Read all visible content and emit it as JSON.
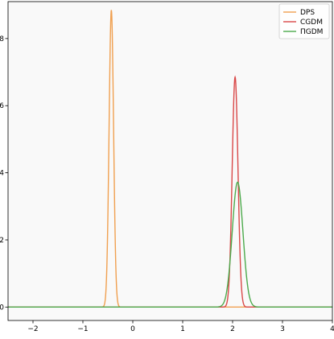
{
  "chart_data": {
    "type": "line",
    "title": "",
    "xlabel": "",
    "ylabel": "",
    "xlim": [
      -2.5,
      4.0
    ],
    "ylim": [
      -0.4,
      9.1
    ],
    "xticks": [
      -2,
      -1,
      0,
      1,
      2,
      3,
      4
    ],
    "xtick_labels": [
      "−2",
      "−1",
      "0",
      "1",
      "2",
      "3",
      "4"
    ],
    "yticks": [
      0,
      2,
      4,
      6,
      8
    ],
    "ytick_labels": [
      "0",
      "2",
      "4",
      "6",
      "8"
    ],
    "grid": false,
    "background": "#f9f9f9",
    "legend_position": "top-right",
    "series": [
      {
        "name": "DPS",
        "color": "#f0a050",
        "shape": "gaussian",
        "mu": -0.43,
        "sigma": 0.045,
        "peak": 8.85
      },
      {
        "name": "CGDM",
        "color": "#d94848",
        "shape": "gaussian",
        "mu": 2.05,
        "sigma": 0.058,
        "peak": 6.85
      },
      {
        "name": "ΠGDM",
        "color": "#4caa4c",
        "shape": "gaussian",
        "mu": 2.1,
        "sigma": 0.107,
        "peak": 3.72
      }
    ]
  }
}
